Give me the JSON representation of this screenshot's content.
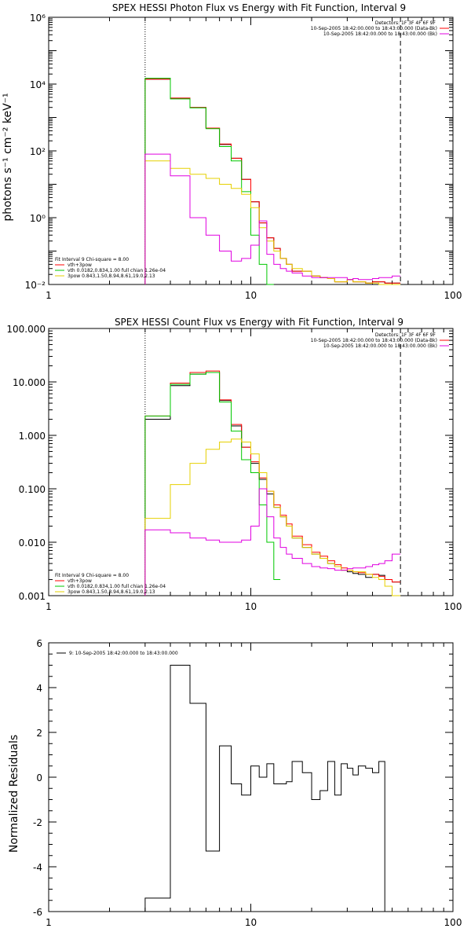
{
  "chart_data": [
    {
      "type": "step-line",
      "title": "SPEX HESSI Photon Flux vs Energy with Fit Function, Interval 9",
      "ylabel": "photons s⁻¹ cm⁻² keV⁻¹",
      "xlabel": "",
      "xscale": "log",
      "yscale": "log",
      "xlim": [
        1,
        100
      ],
      "ylim": [
        0.01,
        1000000
      ],
      "xtick_labels": [
        "1",
        "10",
        "100"
      ],
      "ytick_labels": [
        "10⁻²",
        "10⁰",
        "10²",
        "10⁴",
        "10⁶"
      ],
      "vlines": [
        {
          "x": 3,
          "style": "dotted"
        },
        {
          "x": 55,
          "style": "dashed"
        }
      ],
      "legend_top": [
        "Detectors: 1F 3F 4F 6F 9F",
        "10-Sep-2005 18:42:00.000 to 18:43:00.000 (Data-Bk)",
        "10-Sep-2005 18:42:00.000 to 18:43:00.000 (Bk)"
      ],
      "legend_bottom": [
        "Fit Interval 9   Chi-square = 8.00",
        "vth+3pow",
        "vth 0.0182,0.834,1.00  full chian 1.26e-04",
        "3pow 0.843,1.50,8.94,8.61,19.0,2.13"
      ],
      "edges": [
        3,
        4,
        5,
        6,
        7,
        8,
        9,
        10,
        11,
        12,
        13,
        14,
        15,
        16,
        18,
        20,
        22,
        24,
        26,
        28,
        30,
        32,
        34,
        37,
        40,
        43,
        46,
        50,
        55
      ],
      "series": [
        {
          "color": "#000000",
          "values": [
            14000,
            3800,
            2000,
            480,
            155,
            60,
            14,
            3.0,
            0.7,
            0.25,
            0.12,
            0.06,
            0.04,
            0.025,
            0.025,
            0.018,
            0.016,
            0.015,
            0.012,
            0.012,
            0.014,
            0.012,
            0.012,
            0.011,
            0.012,
            0.012,
            0.011,
            0.011
          ]
        },
        {
          "color": "#ff0000",
          "values": [
            14000,
            3800,
            2000,
            480,
            160,
            60,
            14,
            3.0,
            0.7,
            0.25,
            0.12,
            0.06,
            0.04,
            0.025,
            0.025,
            0.018,
            0.016,
            0.015,
            0.012,
            0.012,
            0.014,
            0.012,
            0.012,
            0.011,
            0.012,
            0.012,
            0.011,
            0.011
          ]
        },
        {
          "color": "#00c800",
          "values": [
            15000,
            3600,
            1950,
            460,
            135,
            50,
            6.0,
            0.3,
            0.04,
            0.01
          ]
        },
        {
          "color": "#e6d000",
          "values": [
            50,
            30,
            20,
            15,
            10,
            7.5,
            5.0,
            2.0,
            0.5,
            0.2,
            0.1,
            0.06,
            0.04,
            0.03,
            0.025,
            0.018,
            0.016,
            0.015,
            0.012,
            0.012,
            0.014,
            0.012,
            0.012,
            0.011,
            0.011,
            0.01,
            0.01,
            0.01
          ]
        },
        {
          "color": "#e000e0",
          "values": [
            80,
            18,
            1.0,
            0.3,
            0.1,
            0.05,
            0.06,
            0.15,
            0.8,
            0.08,
            0.04,
            0.03,
            0.025,
            0.022,
            0.018,
            0.016,
            0.016,
            0.016,
            0.016,
            0.016,
            0.014,
            0.015,
            0.014,
            0.014,
            0.015,
            0.016,
            0.016,
            0.018
          ]
        }
      ]
    },
    {
      "type": "step-line",
      "title": "SPEX HESSI Count Flux vs Energy with Fit Function, Interval 9",
      "ylabel": "",
      "xlabel": "",
      "xscale": "log",
      "yscale": "log",
      "xlim": [
        1,
        100
      ],
      "ylim": [
        0.001,
        100
      ],
      "xtick_labels": [
        "1",
        "10",
        "100"
      ],
      "ytick_labels": [
        "0.001",
        "0.010",
        "0.100",
        "1.000",
        "10.000",
        "100.000"
      ],
      "vlines": [
        {
          "x": 3,
          "style": "dotted"
        },
        {
          "x": 55,
          "style": "dashed"
        }
      ],
      "legend_top": [
        "Detectors: 1F 3F 4F 6F 9F",
        "10-Sep-2005 18:42:00.000 to 18:43:00.000 (Data-Bk)",
        "10-Sep-2005 18:42:00.000 to 18:43:00.000 (Bk)"
      ],
      "legend_bottom": [
        "Fit Interval 9   Chi-square = 8.00",
        "vth+3pow",
        "vth 0.0182,0.834,1.00  full chian 1.26e-04",
        "3pow 0.843,1.50,8.94,8.61,19.0,2.13"
      ],
      "edges": [
        3,
        4,
        5,
        6,
        7,
        8,
        9,
        10,
        11,
        12,
        13,
        14,
        15,
        16,
        18,
        20,
        22,
        24,
        26,
        28,
        30,
        32,
        34,
        37,
        40,
        43,
        46,
        50,
        55
      ],
      "series": [
        {
          "color": "#000000",
          "values": [
            2.0,
            8.5,
            14,
            15,
            4.5,
            1.5,
            0.6,
            0.3,
            0.15,
            0.08,
            0.045,
            0.03,
            0.02,
            0.012,
            0.008,
            0.006,
            0.005,
            0.004,
            0.0035,
            0.003,
            0.0028,
            0.0026,
            0.0025,
            0.0022,
            0.0025,
            0.0024,
            0.002,
            0.0018
          ]
        },
        {
          "color": "#ff0000",
          "values": [
            2.3,
            9.5,
            15,
            16,
            4.6,
            1.6,
            0.6,
            0.32,
            0.16,
            0.09,
            0.05,
            0.032,
            0.022,
            0.013,
            0.009,
            0.0065,
            0.0055,
            0.0045,
            0.0038,
            0.0033,
            0.003,
            0.0028,
            0.0027,
            0.0025,
            0.0025,
            0.0023,
            0.002,
            0.0018
          ]
        },
        {
          "color": "#00c800",
          "values": [
            2.3,
            9.0,
            14,
            15,
            4.2,
            1.2,
            0.35,
            0.2,
            0.05,
            0.01,
            0.002
          ]
        },
        {
          "color": "#e6d000",
          "values": [
            0.028,
            0.12,
            0.3,
            0.55,
            0.75,
            0.85,
            0.75,
            0.45,
            0.2,
            0.09,
            0.045,
            0.03,
            0.02,
            0.012,
            0.008,
            0.006,
            0.005,
            0.004,
            0.0035,
            0.003,
            0.003,
            0.0028,
            0.0028,
            0.0025,
            0.0022,
            0.002,
            0.0015,
            0.001
          ]
        },
        {
          "color": "#e000e0",
          "values": [
            0.017,
            0.015,
            0.012,
            0.011,
            0.01,
            0.01,
            0.011,
            0.02,
            0.1,
            0.03,
            0.012,
            0.008,
            0.006,
            0.005,
            0.004,
            0.0035,
            0.0033,
            0.0032,
            0.003,
            0.003,
            0.0032,
            0.0033,
            0.0033,
            0.0035,
            0.0038,
            0.004,
            0.0045,
            0.006
          ]
        }
      ]
    },
    {
      "type": "step-line",
      "title": "",
      "ylabel": "Normalized Residuals",
      "xlabel": "",
      "xscale": "log",
      "yscale": "linear",
      "xlim": [
        1,
        100
      ],
      "ylim": [
        -6,
        6
      ],
      "xtick_labels": [
        "1",
        "10",
        "100"
      ],
      "ytick_labels": [
        "-6",
        "-4",
        "-2",
        "0",
        "2",
        "4",
        "6"
      ],
      "legend_top": [
        "9: 10-Sep-2005 18:42:00.000 to 18:43:00.000"
      ],
      "edges": [
        3,
        4,
        5,
        6,
        7,
        8,
        9,
        10,
        11,
        12,
        13,
        14,
        15,
        16,
        18,
        20,
        22,
        24,
        26,
        28,
        30,
        32,
        34,
        37,
        40,
        43,
        46,
        50,
        55
      ],
      "series": [
        {
          "color": "#000000",
          "values": [
            -5.4,
            5.0,
            3.3,
            -3.3,
            1.4,
            -0.3,
            -0.8,
            0.5,
            0.0,
            0.6,
            -0.3,
            -0.3,
            -0.2,
            0.7,
            0.2,
            -1.0,
            -0.6,
            0.7,
            -0.8,
            0.6,
            0.4,
            0.1,
            0.5,
            0.4,
            0.2,
            0.7,
            -6.2,
            -6.2
          ]
        }
      ]
    }
  ]
}
